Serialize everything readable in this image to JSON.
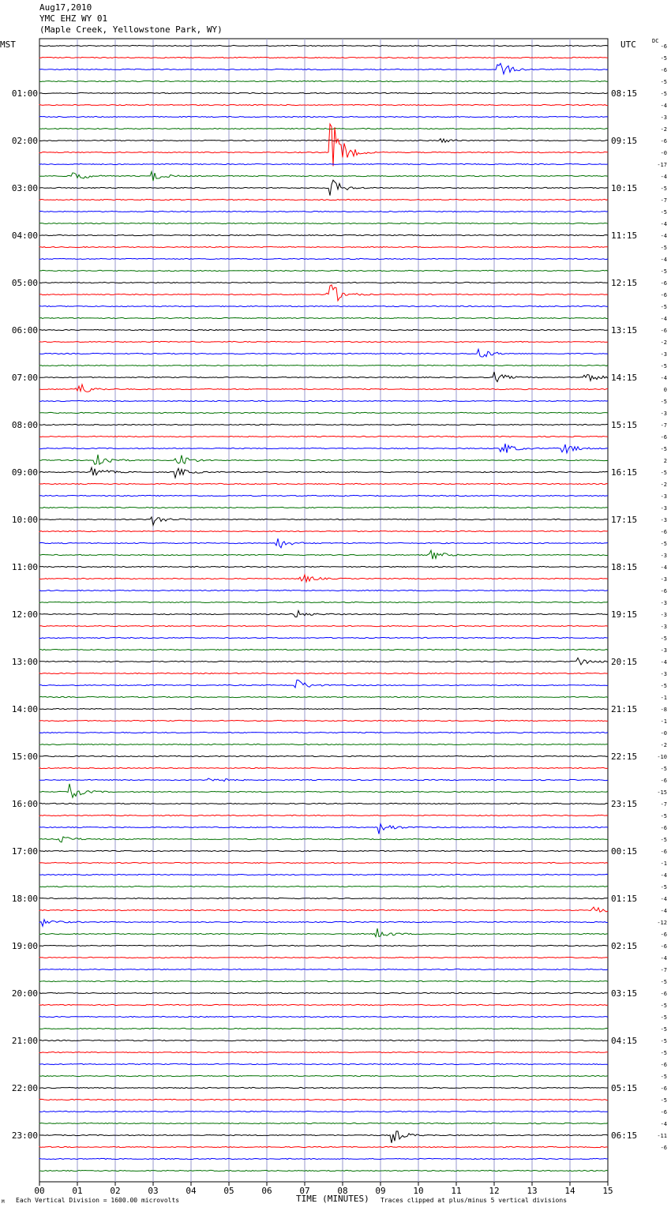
{
  "header": {
    "date": "Aug17,2010",
    "station": "YMC EHZ WY 01",
    "location": "(Maple Creek, Yellowstone Park, WY)"
  },
  "timezone": {
    "left": "MST",
    "right": "UTC",
    "dc_label": "DC"
  },
  "footer": {
    "scale_note": "Each Vertical Division = 1600.00 microvolts",
    "clip_note": "Traces clipped at plus/minus 5 vertical divisions",
    "corner_mark": "M"
  },
  "colors": {
    "trace_cycle": [
      "#000000",
      "#ff0000",
      "#0000ff",
      "#007000"
    ],
    "grid": "#9999cc"
  },
  "chart_data": {
    "type": "line",
    "title": "YMC EHZ WY 01",
    "xlabel": "TIME (MINUTES)",
    "ylabel": "",
    "x_ticks": [
      "00",
      "01",
      "02",
      "03",
      "04",
      "05",
      "06",
      "07",
      "08",
      "09",
      "10",
      "11",
      "12",
      "13",
      "14",
      "15"
    ],
    "xlim": [
      0,
      15
    ],
    "hour_labels_left": [
      "01:00",
      "02:00",
      "03:00",
      "04:00",
      "05:00",
      "06:00",
      "07:00",
      "08:00",
      "09:00",
      "10:00",
      "11:00",
      "12:00",
      "13:00",
      "14:00",
      "15:00",
      "16:00",
      "17:00",
      "18:00",
      "19:00",
      "20:00",
      "21:00",
      "22:00",
      "23:00"
    ],
    "hour_labels_right": [
      "08:15",
      "09:15",
      "10:15",
      "11:15",
      "12:15",
      "13:15",
      "14:15",
      "15:15",
      "16:15",
      "17:15",
      "18:15",
      "19:15",
      "20:15",
      "21:15",
      "22:15",
      "23:15",
      "00:15",
      "01:15",
      "02:15",
      "03:15",
      "04:15",
      "05:15",
      "06:15"
    ],
    "dc_offsets": [
      "-6",
      "-5",
      "-6",
      "-5",
      "-5",
      "-4",
      "-3",
      "-2",
      "-6",
      "-0",
      "-17",
      "-4",
      "-5",
      "-7",
      "-5",
      "-4",
      "-4",
      "-5",
      "-4",
      "-5",
      "-6",
      "-6",
      "-5",
      "-4",
      "-6",
      "-2",
      "-3",
      "-5",
      "-4",
      "0",
      "-5",
      "-3",
      "-7",
      "-6",
      "-5",
      "2",
      "-5",
      "-2",
      "-3",
      "-3",
      "-3",
      "-6",
      "-5",
      "-3",
      "-4",
      "-3",
      "-6",
      "-3",
      "-3",
      "-3",
      "-5",
      "-3",
      "-4",
      "-3",
      "-5",
      "-1",
      "-8",
      "-1",
      "-0",
      "-2",
      "-10",
      "-5",
      "-6",
      "-15",
      "-7",
      "-5",
      "-6",
      "-5",
      "-6",
      "-1",
      "-4",
      "-5",
      "-4",
      "-4",
      "-12",
      "-6",
      "-6",
      "-4",
      "-7",
      "-5",
      "-6",
      "-5",
      "-5",
      "-5",
      "-5",
      "-5",
      "-6",
      "-5",
      "-6",
      "-5",
      "-6",
      "-4",
      "-11",
      "-6"
    ],
    "traces_count": 96,
    "events": [
      {
        "trace": 2,
        "minute": 12.1,
        "amp": 12
      },
      {
        "trace": 8,
        "minute": 10.6,
        "amp": 3
      },
      {
        "trace": 9,
        "minute": 7.7,
        "amp": 45
      },
      {
        "trace": 11,
        "minute": 0.9,
        "amp": 8
      },
      {
        "trace": 11,
        "minute": 3.0,
        "amp": 6
      },
      {
        "trace": 12,
        "minute": 7.7,
        "amp": 12
      },
      {
        "trace": 21,
        "minute": 7.6,
        "amp": 22
      },
      {
        "trace": 26,
        "minute": 11.6,
        "amp": 8
      },
      {
        "trace": 28,
        "minute": 12.0,
        "amp": 7
      },
      {
        "trace": 28,
        "minute": 14.4,
        "amp": 8
      },
      {
        "trace": 29,
        "minute": 1.0,
        "amp": 10
      },
      {
        "trace": 34,
        "minute": 12.2,
        "amp": 9
      },
      {
        "trace": 34,
        "minute": 13.8,
        "amp": 9
      },
      {
        "trace": 35,
        "minute": 1.5,
        "amp": 12
      },
      {
        "trace": 35,
        "minute": 3.6,
        "amp": 12
      },
      {
        "trace": 36,
        "minute": 1.4,
        "amp": 8
      },
      {
        "trace": 36,
        "minute": 3.6,
        "amp": 7
      },
      {
        "trace": 40,
        "minute": 3.0,
        "amp": 7
      },
      {
        "trace": 42,
        "minute": 6.3,
        "amp": 7
      },
      {
        "trace": 43,
        "minute": 10.3,
        "amp": 8
      },
      {
        "trace": 45,
        "minute": 6.9,
        "amp": 7
      },
      {
        "trace": 48,
        "minute": 6.7,
        "amp": 7
      },
      {
        "trace": 52,
        "minute": 14.2,
        "amp": 7
      },
      {
        "trace": 54,
        "minute": 6.8,
        "amp": 8
      },
      {
        "trace": 62,
        "minute": 4.5,
        "amp": 6
      },
      {
        "trace": 63,
        "minute": 0.8,
        "amp": 10
      },
      {
        "trace": 66,
        "minute": 9.0,
        "amp": 8
      },
      {
        "trace": 67,
        "minute": 0.5,
        "amp": 6
      },
      {
        "trace": 73,
        "minute": 14.6,
        "amp": 6
      },
      {
        "trace": 74,
        "minute": 0.1,
        "amp": 5
      },
      {
        "trace": 75,
        "minute": 8.9,
        "amp": 8
      },
      {
        "trace": 92,
        "minute": 9.3,
        "amp": 10
      }
    ]
  }
}
